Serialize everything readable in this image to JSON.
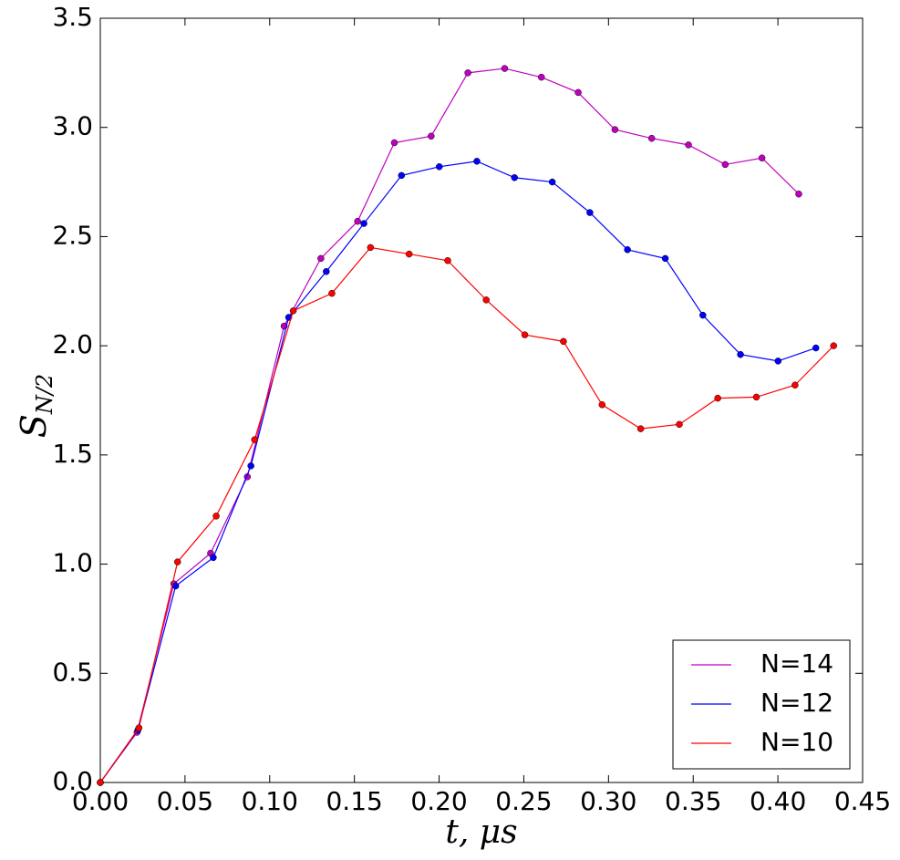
{
  "chart_data": {
    "type": "line",
    "x_label": "t, μs",
    "y_label": {
      "main": "S",
      "sub": "N/2"
    },
    "legend": "lower right",
    "series": [
      {
        "name": "N=14",
        "color": "#bf00bf",
        "x": [
          0,
          0.0217,
          0.0434,
          0.0651,
          0.0868,
          0.1085,
          0.1302,
          0.1519,
          0.1736,
          0.1953,
          0.217,
          0.2387,
          0.2604,
          0.2821,
          0.3038,
          0.3255,
          0.3472,
          0.3689,
          0.3906,
          0.4123
        ],
        "values": [
          0,
          0.23,
          0.91,
          1.05,
          1.4,
          2.09,
          2.4,
          2.57,
          2.93,
          2.96,
          3.25,
          3.27,
          3.23,
          3.16,
          2.99,
          2.95,
          2.92,
          2.83,
          2.86,
          2.695
        ]
      },
      {
        "name": "N=12",
        "color": "#0000ff",
        "x": [
          0,
          0.0222,
          0.0445,
          0.0667,
          0.0889,
          0.1112,
          0.1334,
          0.1556,
          0.1778,
          0.2001,
          0.2223,
          0.2445,
          0.2668,
          0.289,
          0.3112,
          0.3335,
          0.3557,
          0.3779,
          0.4001,
          0.4224
        ],
        "values": [
          0,
          0.24,
          0.9,
          1.03,
          1.45,
          2.13,
          2.34,
          2.56,
          2.78,
          2.82,
          2.845,
          2.77,
          2.75,
          2.61,
          2.44,
          2.4,
          2.14,
          1.96,
          1.93,
          1.99
        ]
      },
      {
        "name": "N=10",
        "color": "#ff0000",
        "x": [
          0,
          0.0228,
          0.0456,
          0.0684,
          0.0911,
          0.1139,
          0.1367,
          0.1595,
          0.1823,
          0.2051,
          0.2278,
          0.2506,
          0.2734,
          0.2962,
          0.319,
          0.3418,
          0.3645,
          0.3873,
          0.4101,
          0.4329
        ],
        "values": [
          0,
          0.25,
          1.01,
          1.22,
          1.57,
          2.16,
          2.24,
          2.45,
          2.42,
          2.39,
          2.21,
          2.05,
          2.02,
          1.73,
          1.62,
          1.64,
          1.76,
          1.765,
          1.82,
          2.0
        ]
      }
    ],
    "xlim": [
      0,
      0.45
    ],
    "ylim": [
      0,
      3.5
    ],
    "xticks": [
      {
        "value": 0,
        "label": "0.00"
      },
      {
        "value": 0.05,
        "label": "0.05"
      },
      {
        "value": 0.1,
        "label": "0.10"
      },
      {
        "value": 0.15,
        "label": "0.15"
      },
      {
        "value": 0.2,
        "label": "0.20"
      },
      {
        "value": 0.25,
        "label": "0.25"
      },
      {
        "value": 0.3,
        "label": "0.30"
      },
      {
        "value": 0.35,
        "label": "0.35"
      },
      {
        "value": 0.4,
        "label": "0.40"
      },
      {
        "value": 0.45,
        "label": "0.45"
      }
    ],
    "yticks": [
      {
        "value": 0,
        "label": "0.0"
      },
      0.5,
      {
        "value": 1,
        "label": "1.0"
      },
      1.5,
      {
        "value": 2,
        "label": "2.0"
      },
      2.5,
      {
        "value": 3,
        "label": "3.0"
      },
      3.5
    ]
  }
}
